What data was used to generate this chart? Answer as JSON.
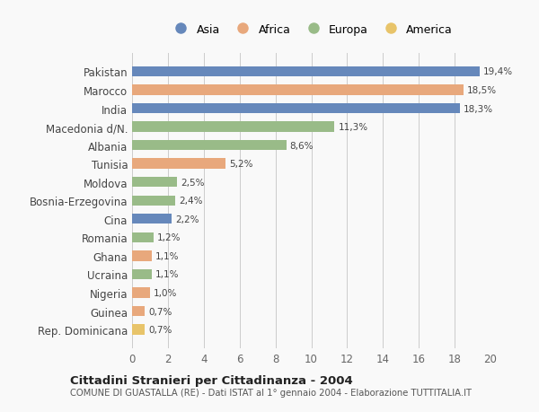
{
  "categories": [
    "Rep. Dominicana",
    "Guinea",
    "Nigeria",
    "Ucraina",
    "Ghana",
    "Romania",
    "Cina",
    "Bosnia-Erzegovina",
    "Moldova",
    "Tunisia",
    "Albania",
    "Macedonia d/N.",
    "India",
    "Marocco",
    "Pakistan"
  ],
  "values": [
    0.7,
    0.7,
    1.0,
    1.1,
    1.1,
    1.2,
    2.2,
    2.4,
    2.5,
    5.2,
    8.6,
    11.3,
    18.3,
    18.5,
    19.4
  ],
  "labels": [
    "0,7%",
    "0,7%",
    "1,0%",
    "1,1%",
    "1,1%",
    "1,2%",
    "2,2%",
    "2,4%",
    "2,5%",
    "5,2%",
    "8,6%",
    "11,3%",
    "18,3%",
    "18,5%",
    "19,4%"
  ],
  "colors": [
    "#e8c46a",
    "#e8a87c",
    "#e8a87c",
    "#99bb88",
    "#e8a87c",
    "#99bb88",
    "#6688bb",
    "#99bb88",
    "#99bb88",
    "#e8a87c",
    "#99bb88",
    "#99bb88",
    "#6688bb",
    "#e8a87c",
    "#6688bb"
  ],
  "legend_labels": [
    "Asia",
    "Africa",
    "Europa",
    "America"
  ],
  "legend_colors": [
    "#6688bb",
    "#e8a87c",
    "#99bb88",
    "#e8c46a"
  ],
  "title": "Cittadini Stranieri per Cittadinanza - 2004",
  "subtitle": "COMUNE DI GUASTALLA (RE) - Dati ISTAT al 1° gennaio 2004 - Elaborazione TUTTITALIA.IT",
  "xlim": [
    0,
    20
  ],
  "xticks": [
    0,
    2,
    4,
    6,
    8,
    10,
    12,
    14,
    16,
    18,
    20
  ],
  "background_color": "#f9f9f9",
  "grid_color": "#cccccc",
  "bar_height": 0.55
}
